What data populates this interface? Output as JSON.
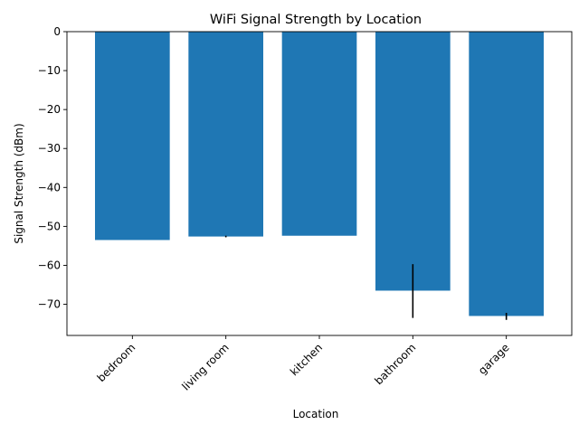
{
  "chart_data": {
    "type": "bar",
    "title": "WiFi Signal Strength by Location",
    "xlabel": "Location",
    "ylabel": "Signal Strength (dBm)",
    "categories": [
      "bedroom",
      "living room",
      "kitchen",
      "bathroom",
      "garage"
    ],
    "values": [
      -53.5,
      -52.6,
      -52.4,
      -66.5,
      -73.0
    ],
    "error_low": [
      0,
      0.2,
      0,
      7.0,
      1.0
    ],
    "error_high": [
      0,
      0.2,
      0,
      6.8,
      0.8
    ],
    "ylim": [
      -78,
      0
    ],
    "yticks": [
      0,
      -10,
      -20,
      -30,
      -40,
      -50,
      -60,
      -70
    ],
    "tick_rotation_deg": -45,
    "bar_color": "#1f77b4",
    "error_color": "#000000",
    "grid": false,
    "legend": "none"
  }
}
